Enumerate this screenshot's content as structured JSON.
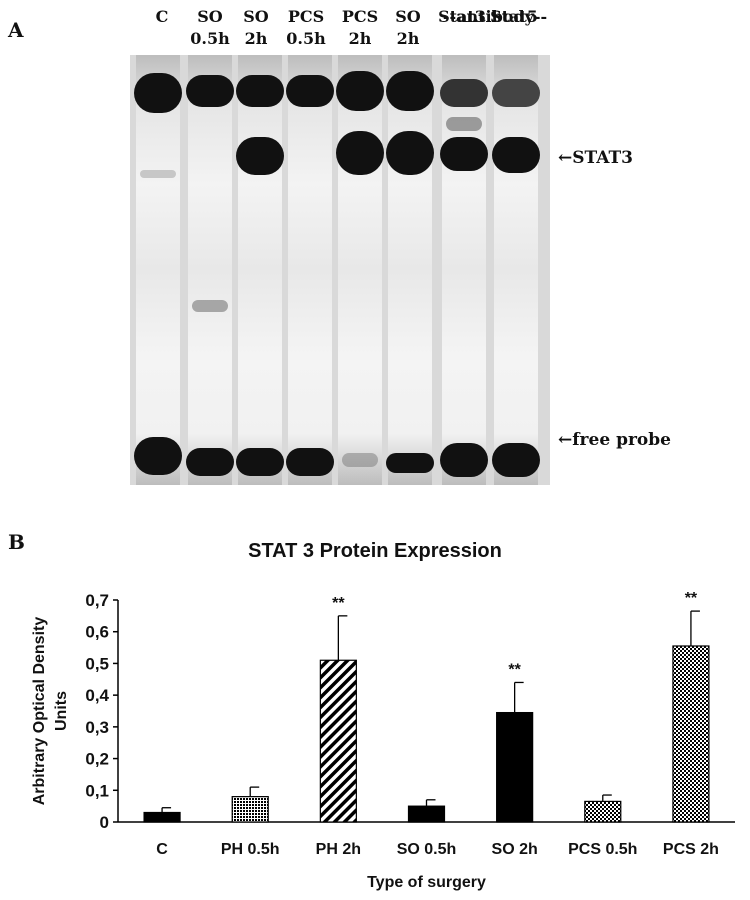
{
  "panel_labels": {
    "a": "A",
    "b": "B"
  },
  "gel": {
    "lane_labels": [
      {
        "line1": "C",
        "line2": ""
      },
      {
        "line1": "SO",
        "line2": "0.5h"
      },
      {
        "line1": "SO",
        "line2": "2h"
      },
      {
        "line1": "PCS",
        "line2": "0.5h"
      },
      {
        "line1": "PCS",
        "line2": "2h"
      },
      {
        "line1": "SO",
        "line2": "2h"
      },
      {
        "line1": "--antibody--",
        "line2": ""
      },
      {
        "line1": "",
        "line2": "Stat3"
      },
      {
        "line1": "",
        "line2": "Stat5"
      }
    ],
    "band_labels": {
      "stat3": "←STAT3",
      "free_probe": "←free probe"
    }
  },
  "chart_data": {
    "type": "bar",
    "title": "STAT 3 Protein Expression",
    "xlabel": "Type of surgery",
    "ylabel": "Arbitrary Optical Density Units",
    "ylabel_lines": [
      "Arbitrary Optical Density",
      "Units"
    ],
    "categories": [
      "C",
      "PH 0.5h",
      "PH 2h",
      "SO 0.5h",
      "SO 2h",
      "PCS 0.5h",
      "PCS 2h"
    ],
    "values": [
      0.03,
      0.08,
      0.51,
      0.05,
      0.345,
      0.065,
      0.555
    ],
    "errors": [
      0.015,
      0.03,
      0.14,
      0.02,
      0.095,
      0.02,
      0.11
    ],
    "annotations": [
      "",
      "",
      "**",
      "",
      "**",
      "",
      "**"
    ],
    "fills": [
      "solid",
      "dense-dots",
      "diagonal",
      "solid",
      "solid",
      "checker",
      "checker"
    ],
    "ylim": [
      0,
      0.7
    ],
    "yticks": [
      0,
      0.1,
      0.2,
      0.3,
      0.4,
      0.5,
      0.6,
      0.7
    ],
    "ytick_labels": [
      "0",
      "0,1",
      "0,2",
      "0,3",
      "0,4",
      "0,5",
      "0,6",
      "0,7"
    ],
    "grid": false,
    "bar_color": "#000000"
  }
}
